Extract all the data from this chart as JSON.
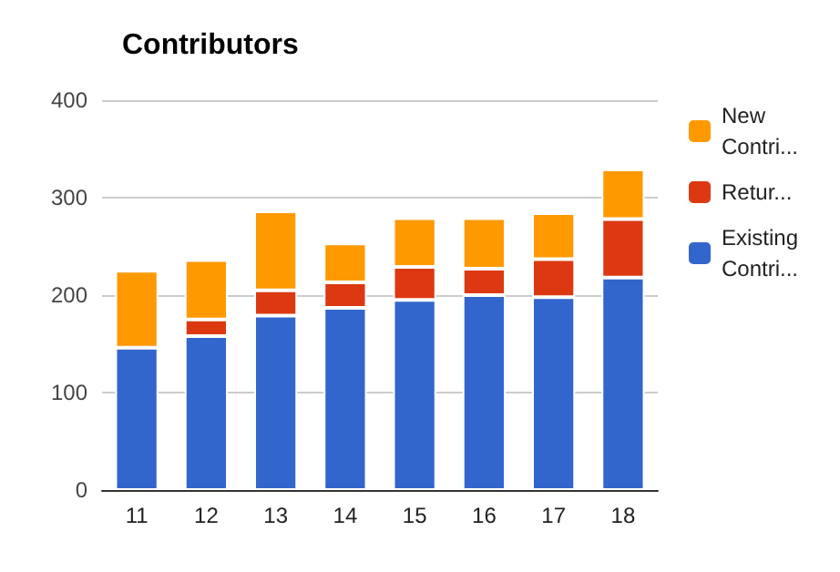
{
  "chart_data": {
    "type": "bar",
    "title": "Contributors",
    "categories": [
      "11",
      "12",
      "13",
      "14",
      "15",
      "16",
      "17",
      "18"
    ],
    "stacked": true,
    "series": [
      {
        "name": "Existing Contri...",
        "color": "#3366cc",
        "values": [
          146,
          158,
          179,
          187,
          195,
          200,
          198,
          218
        ]
      },
      {
        "name": "Retur...",
        "color": "#dc3912",
        "values": [
          0,
          17,
          26,
          26,
          34,
          27,
          39,
          60
        ]
      },
      {
        "name": "New Contri...",
        "color": "#ff9900",
        "values": [
          79,
          61,
          81,
          40,
          50,
          52,
          47,
          51
        ]
      }
    ],
    "ylim": [
      0,
      400
    ],
    "yticks": [
      0,
      100,
      200,
      300,
      400
    ],
    "grid": "y",
    "legend": "top right"
  }
}
